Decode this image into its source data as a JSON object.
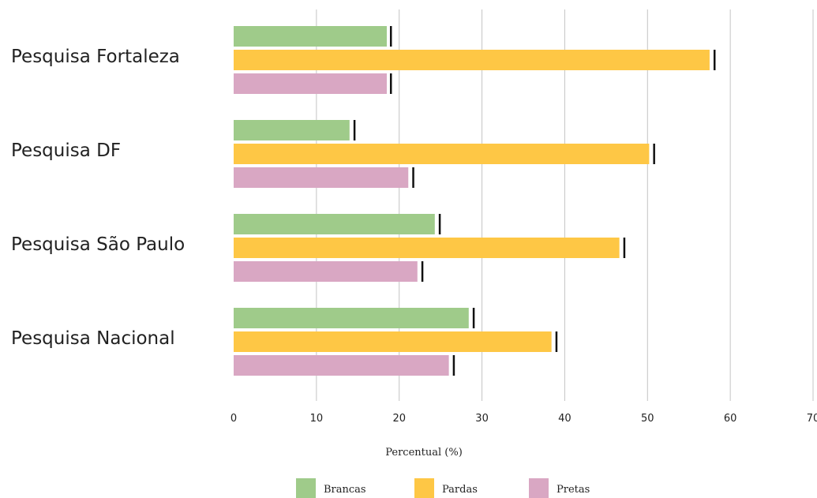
{
  "chart_data": {
    "type": "bar",
    "orientation": "horizontal",
    "title": "",
    "xlabel": "Percentual (%)",
    "ylabel": "",
    "xlim": [
      0,
      70
    ],
    "xticks": [
      "0",
      "10",
      "20",
      "30",
      "40",
      "50",
      "60",
      "70"
    ],
    "grid": true,
    "legend_position": "bottom",
    "error_bars": true,
    "categories": [
      "Pesquisa Fortaleza",
      "Pesquisa DF",
      "Pesquisa São Paulo",
      "Pesquisa Nacional"
    ],
    "series": [
      {
        "name": "Brancas",
        "color": "#9fcb8a",
        "values": [
          18.5,
          14.0,
          24.3,
          28.4
        ],
        "error_upper": [
          19.0,
          14.6,
          24.9,
          29.0
        ]
      },
      {
        "name": "Pardas",
        "color": "#fec745",
        "values": [
          57.5,
          50.2,
          46.6,
          38.4
        ],
        "error_upper": [
          58.1,
          50.8,
          47.2,
          39.0
        ]
      },
      {
        "name": "Pretas",
        "color": "#d9a7c3",
        "values": [
          18.5,
          21.1,
          22.2,
          26.0
        ],
        "error_upper": [
          19.0,
          21.7,
          22.8,
          26.6
        ]
      }
    ]
  }
}
